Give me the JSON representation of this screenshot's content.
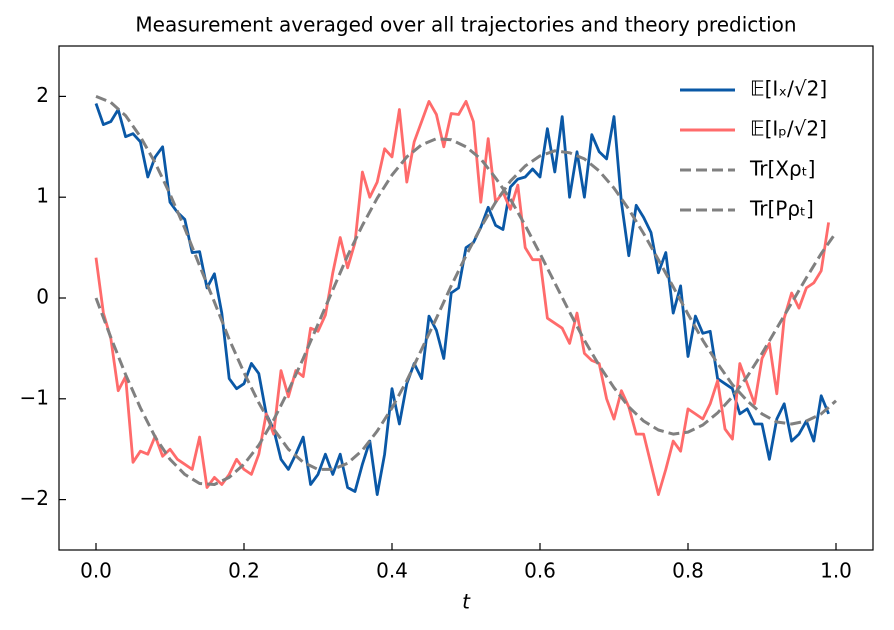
{
  "chart_data": {
    "type": "line",
    "title": "Measurement averaged over all trajectories and theory prediction",
    "xlabel": "t",
    "xlim": [
      -0.05,
      1.05
    ],
    "ylim": [
      -2.5,
      2.5
    ],
    "xticks": [
      {
        "value": 0,
        "label": "0.0"
      },
      {
        "value": 0.2,
        "label": "0.2"
      },
      {
        "value": 0.4,
        "label": "0.4"
      },
      {
        "value": 0.6,
        "label": "0.6"
      },
      {
        "value": 0.8,
        "label": "0.8"
      },
      {
        "value": 1,
        "label": "1.0"
      }
    ],
    "yticks": [
      {
        "value": -2,
        "label": "−2"
      },
      {
        "value": -1,
        "label": "−1"
      },
      0,
      1,
      2
    ],
    "legend": "upper right",
    "series": [
      {
        "name": "𝔼[Iₓ/√2]",
        "color": "#0a58a6",
        "style": "solid",
        "x": [
          0,
          0.01,
          0.02,
          0.03,
          0.04,
          0.05,
          0.06,
          0.07,
          0.08,
          0.09,
          0.1,
          0.11,
          0.12,
          0.13,
          0.14,
          0.15,
          0.16,
          0.17,
          0.18,
          0.19,
          0.2,
          0.21,
          0.22,
          0.23,
          0.24,
          0.25,
          0.26,
          0.27,
          0.28,
          0.29,
          0.3,
          0.31,
          0.32,
          0.33,
          0.34,
          0.35,
          0.36,
          0.37,
          0.38,
          0.39,
          0.4,
          0.41,
          0.42,
          0.43,
          0.44,
          0.45,
          0.46,
          0.47,
          0.48,
          0.49,
          0.5,
          0.51,
          0.52,
          0.53,
          0.54,
          0.55,
          0.56,
          0.57,
          0.58,
          0.59,
          0.6,
          0.61,
          0.62,
          0.63,
          0.64,
          0.65,
          0.66,
          0.67,
          0.68,
          0.69,
          0.7,
          0.71,
          0.72,
          0.73,
          0.74,
          0.75,
          0.76,
          0.77,
          0.78,
          0.79,
          0.8,
          0.81,
          0.82,
          0.83,
          0.84,
          0.85,
          0.86,
          0.87,
          0.88,
          0.89,
          0.9,
          0.91,
          0.92,
          0.93,
          0.94,
          0.95,
          0.96,
          0.97,
          0.98,
          0.99
        ],
        "values": [
          1.93,
          1.72,
          1.75,
          1.87,
          1.6,
          1.63,
          1.55,
          1.2,
          1.4,
          1.5,
          0.95,
          0.85,
          0.78,
          0.45,
          0.46,
          0.1,
          0.24,
          -0.15,
          -0.8,
          -0.9,
          -0.85,
          -0.65,
          -0.75,
          -1.15,
          -1.3,
          -1.6,
          -1.7,
          -1.55,
          -1.38,
          -1.85,
          -1.75,
          -1.55,
          -1.75,
          -1.55,
          -1.88,
          -1.92,
          -1.65,
          -1.42,
          -1.95,
          -1.55,
          -0.9,
          -1.25,
          -0.85,
          -0.65,
          -0.8,
          -0.18,
          -0.32,
          -0.6,
          0.05,
          0.1,
          0.5,
          0.55,
          0.7,
          0.9,
          0.72,
          0.68,
          1.1,
          1.18,
          1.2,
          1.28,
          1.2,
          1.68,
          1.25,
          1.8,
          1.0,
          1.45,
          1.0,
          1.62,
          1.45,
          1.38,
          1.8,
          0.95,
          0.42,
          0.92,
          0.8,
          0.65,
          0.25,
          0.45,
          -0.15,
          0.12,
          -0.58,
          -0.18,
          -0.35,
          -0.33,
          -0.8,
          -0.85,
          -0.9,
          -1.15,
          -1.1,
          -1.25,
          -1.25,
          -1.6,
          -1.2,
          -1.05,
          -1.42,
          -1.35,
          -1.22,
          -1.42,
          -0.97,
          -1.15
        ]
      },
      {
        "name": "𝔼[Iₚ/√2]",
        "color": "#ff6b6b",
        "style": "solid",
        "x": [
          0,
          0.01,
          0.02,
          0.03,
          0.04,
          0.05,
          0.06,
          0.07,
          0.08,
          0.09,
          0.1,
          0.11,
          0.12,
          0.13,
          0.14,
          0.15,
          0.16,
          0.17,
          0.18,
          0.19,
          0.2,
          0.21,
          0.22,
          0.23,
          0.24,
          0.25,
          0.26,
          0.27,
          0.28,
          0.29,
          0.3,
          0.31,
          0.32,
          0.33,
          0.34,
          0.35,
          0.36,
          0.37,
          0.38,
          0.39,
          0.4,
          0.41,
          0.42,
          0.43,
          0.44,
          0.45,
          0.46,
          0.47,
          0.48,
          0.49,
          0.5,
          0.51,
          0.52,
          0.53,
          0.54,
          0.55,
          0.56,
          0.57,
          0.58,
          0.59,
          0.6,
          0.61,
          0.62,
          0.63,
          0.64,
          0.65,
          0.66,
          0.67,
          0.68,
          0.69,
          0.7,
          0.71,
          0.72,
          0.73,
          0.74,
          0.75,
          0.76,
          0.77,
          0.78,
          0.79,
          0.8,
          0.81,
          0.82,
          0.83,
          0.84,
          0.85,
          0.86,
          0.87,
          0.88,
          0.89,
          0.9,
          0.91,
          0.92,
          0.93,
          0.94,
          0.95,
          0.96,
          0.97,
          0.98,
          0.99
        ],
        "values": [
          0.4,
          -0.15,
          -0.4,
          -0.92,
          -0.78,
          -1.63,
          -1.52,
          -1.55,
          -1.37,
          -1.57,
          -1.5,
          -1.6,
          -1.65,
          -1.7,
          -1.38,
          -1.88,
          -1.78,
          -1.85,
          -1.75,
          -1.6,
          -1.7,
          -1.75,
          -1.55,
          -1.15,
          -1.35,
          -0.72,
          -0.98,
          -0.72,
          -0.78,
          -0.3,
          -0.33,
          -0.17,
          0.25,
          0.6,
          0.3,
          0.55,
          1.25,
          1.0,
          1.15,
          1.48,
          1.4,
          1.87,
          1.15,
          1.55,
          1.75,
          1.95,
          1.82,
          1.5,
          1.83,
          1.82,
          1.95,
          1.75,
          0.95,
          1.58,
          0.95,
          1.05,
          0.88,
          1.12,
          0.5,
          0.38,
          0.38,
          -0.2,
          -0.25,
          -0.3,
          -0.45,
          -0.15,
          -0.55,
          -0.62,
          -0.65,
          -1.0,
          -1.2,
          -0.92,
          -1.08,
          -1.35,
          -1.35,
          -1.65,
          -1.95,
          -1.7,
          -1.42,
          -1.52,
          -1.1,
          -1.15,
          -1.2,
          -1.05,
          -0.82,
          -1.3,
          -1.4,
          -0.65,
          -0.85,
          -1.05,
          -0.6,
          -0.45,
          -0.95,
          -0.2,
          0.05,
          -0.1,
          0.1,
          0.15,
          0.27,
          0.75
        ]
      },
      {
        "name": "Tr[Xρₜ]",
        "color": "#808080",
        "style": "dashed",
        "x": [
          0,
          0.02,
          0.04,
          0.06,
          0.08,
          0.1,
          0.12,
          0.14,
          0.16,
          0.18,
          0.2,
          0.22,
          0.24,
          0.26,
          0.28,
          0.3,
          0.32,
          0.34,
          0.36,
          0.38,
          0.4,
          0.42,
          0.44,
          0.46,
          0.48,
          0.5,
          0.52,
          0.54,
          0.56,
          0.58,
          0.6,
          0.62,
          0.64,
          0.66,
          0.68,
          0.7,
          0.72,
          0.74,
          0.76,
          0.78,
          0.8,
          0.82,
          0.84,
          0.86,
          0.88,
          0.9,
          0.92,
          0.94,
          0.96,
          0.98,
          1
        ],
        "values": [
          2,
          1.94,
          1.81,
          1.6,
          1.34,
          1.03,
          0.69,
          0.32,
          -0.04,
          -0.41,
          -0.74,
          -1.04,
          -1.3,
          -1.5,
          -1.63,
          -1.7,
          -1.7,
          -1.64,
          -1.51,
          -1.32,
          -1.09,
          -0.82,
          -0.51,
          -0.2,
          0.12,
          0.42,
          0.7,
          0.95,
          1.16,
          1.31,
          1.41,
          1.46,
          1.44,
          1.38,
          1.26,
          1.09,
          0.88,
          0.64,
          0.38,
          0.11,
          -0.16,
          -0.42,
          -0.65,
          -0.86,
          -1.02,
          -1.15,
          -1.23,
          -1.25,
          -1.22,
          -1.15,
          -1.02
        ]
      },
      {
        "name": "Tr[Pρₜ]",
        "color": "#808080",
        "style": "dashed",
        "x": [
          0,
          0.02,
          0.04,
          0.06,
          0.08,
          0.1,
          0.12,
          0.14,
          0.16,
          0.18,
          0.2,
          0.22,
          0.24,
          0.26,
          0.28,
          0.3,
          0.32,
          0.34,
          0.36,
          0.38,
          0.4,
          0.42,
          0.44,
          0.46,
          0.48,
          0.5,
          0.52,
          0.54,
          0.56,
          0.58,
          0.6,
          0.62,
          0.64,
          0.66,
          0.68,
          0.7,
          0.72,
          0.74,
          0.76,
          0.78,
          0.8,
          0.82,
          0.84,
          0.86,
          0.88,
          0.9,
          0.92,
          0.94,
          0.96,
          0.98,
          1
        ],
        "values": [
          0,
          -0.39,
          -0.76,
          -1.09,
          -1.38,
          -1.6,
          -1.75,
          -1.84,
          -1.85,
          -1.78,
          -1.65,
          -1.46,
          -1.21,
          -0.92,
          -0.6,
          -0.26,
          0.08,
          0.42,
          0.72,
          0.99,
          1.22,
          1.4,
          1.52,
          1.58,
          1.57,
          1.5,
          1.38,
          1.19,
          0.98,
          0.72,
          0.44,
          0.15,
          -0.14,
          -0.42,
          -0.67,
          -0.89,
          -1.08,
          -1.22,
          -1.31,
          -1.35,
          -1.33,
          -1.26,
          -1.14,
          -0.98,
          -0.78,
          -0.55,
          -0.3,
          -0.05,
          0.2,
          0.44,
          0.65
        ]
      }
    ]
  }
}
